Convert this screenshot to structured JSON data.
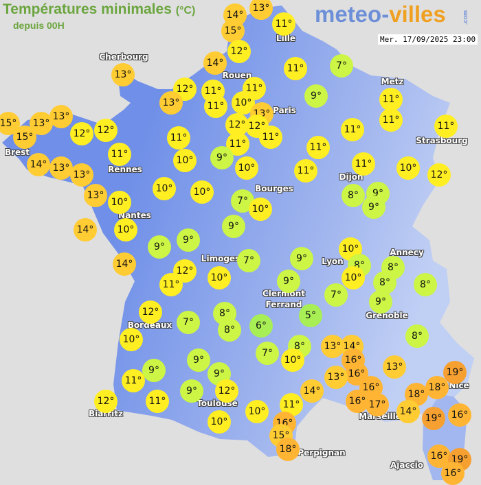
{
  "header": {
    "title": "Températures minimales",
    "unit": "(°C)",
    "subtitle": "depuis 00H"
  },
  "logo": {
    "part1": "meteo-",
    "part2": "villes",
    "part3": ".com"
  },
  "datetime": "Mer. 17/09/2025 23:00",
  "colors": {
    "sea": "#e0dfdf",
    "land_west": "#6f8fe8",
    "land_east": "#a9bdf0",
    "t_5_6": "#a8ee55",
    "t_7_9": "#ccf545",
    "t_10_12": "#ffee22",
    "t_13_15": "#ffcc33",
    "t_16_18": "#ffb533",
    "t_19": "#f5a030"
  },
  "cities": [
    "Cherbourg",
    "Lille",
    "Rouen",
    "Paris",
    "Metz",
    "Strasbourg",
    "Brest",
    "Rennes",
    "Nantes",
    "Bourges",
    "Dijon",
    "Limoges",
    "Lyon",
    "Annecy",
    "Clermont\nFerrand",
    "Grenoble",
    "Bordeaux",
    "Biarritz",
    "Toulouse",
    "Marseille",
    "Nice",
    "Perpignan",
    "Ajaccio"
  ],
  "temperatures": [
    14,
    15,
    13,
    11,
    12,
    14,
    11,
    7,
    12,
    11,
    11,
    11,
    10,
    13,
    13,
    12,
    12,
    11,
    11,
    9,
    11,
    11,
    11,
    11,
    11,
    11,
    10,
    12,
    11,
    10,
    9,
    10,
    11,
    13,
    13,
    15,
    15,
    13,
    12,
    12,
    11,
    14,
    13,
    13,
    13,
    10,
    10,
    10,
    10,
    14,
    7,
    10,
    9,
    8,
    9,
    9,
    9,
    9,
    14,
    12,
    11,
    10,
    7,
    9,
    9,
    10,
    8,
    10,
    8,
    8,
    8,
    9,
    7,
    5,
    6,
    8,
    8,
    12,
    7,
    10,
    7,
    8,
    10,
    13,
    14,
    16,
    16,
    13,
    16,
    16,
    17,
    14,
    11,
    10,
    13,
    8,
    19,
    18,
    18,
    14,
    19,
    16,
    16,
    15,
    18,
    16,
    19,
    16,
    9,
    11,
    12,
    11,
    9,
    9,
    9,
    12,
    10
  ]
}
